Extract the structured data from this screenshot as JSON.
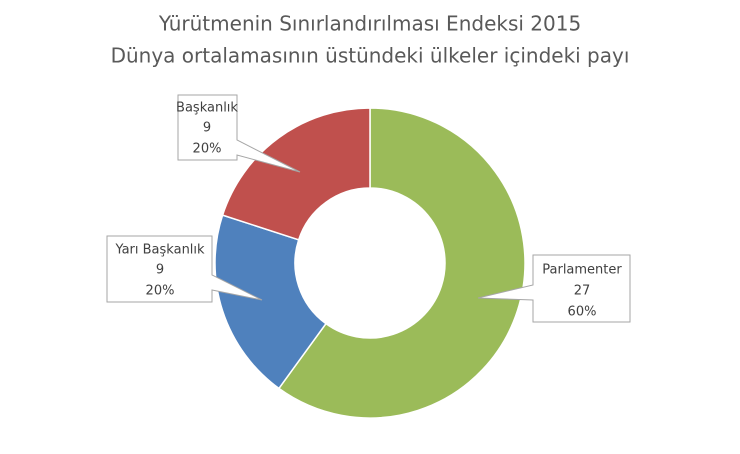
{
  "chart_data": {
    "type": "donut",
    "title": "Yürütmenin Sınırlandırılması Endeksi 2015",
    "subtitle": "Dünya ortalamasının üstündeki ülkeler içindeki payı",
    "categories": [
      "Parlamenter",
      "Yarı Başkanlık",
      "Başkanlık"
    ],
    "values": [
      27,
      9,
      9
    ],
    "percents": [
      60,
      20,
      20
    ],
    "percent_labels": [
      "60%",
      "20%",
      "20%"
    ],
    "colors": [
      "#9bbb59",
      "#4f81bd",
      "#c0504d"
    ]
  }
}
